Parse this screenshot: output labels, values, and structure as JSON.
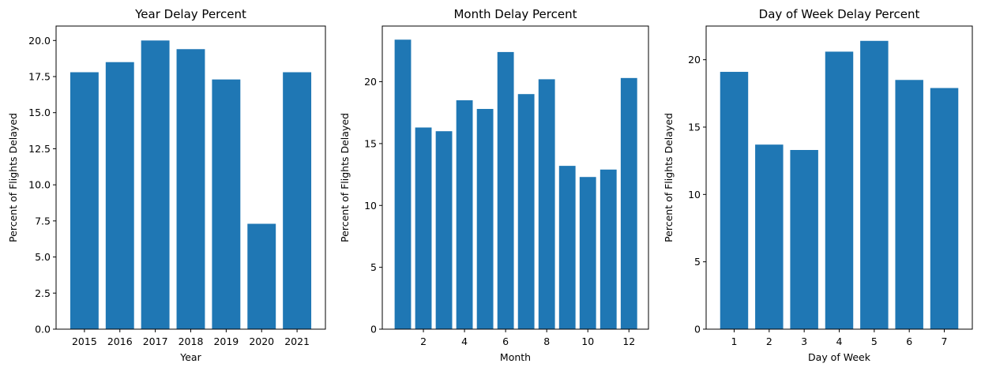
{
  "bar_color": "#1f77b4",
  "chart_data": [
    {
      "type": "bar",
      "title": "Year Delay Percent",
      "xlabel": "Year",
      "ylabel": "Percent of Flights Delayed",
      "categories": [
        "2015",
        "2016",
        "2017",
        "2018",
        "2019",
        "2020",
        "2021"
      ],
      "values": [
        17.8,
        18.5,
        20.0,
        19.4,
        17.3,
        7.3,
        17.8
      ],
      "ylim": [
        0,
        21
      ],
      "yticks": [
        "0.0",
        "2.5",
        "5.0",
        "7.5",
        "10.0",
        "12.5",
        "15.0",
        "17.5",
        "20.0"
      ],
      "xticks": [
        "2015",
        "2016",
        "2017",
        "2018",
        "2019",
        "2020",
        "2021"
      ],
      "grid": false
    },
    {
      "type": "bar",
      "title": "Month Delay Percent",
      "xlabel": "Month",
      "ylabel": "Percent of Flights Delayed",
      "categories": [
        "1",
        "2",
        "3",
        "4",
        "5",
        "6",
        "7",
        "8",
        "9",
        "10",
        "11",
        "12"
      ],
      "values": [
        23.4,
        16.3,
        16.0,
        18.5,
        17.8,
        22.4,
        19.0,
        20.2,
        13.2,
        12.3,
        12.9,
        20.3
      ],
      "ylim": [
        0,
        24.5
      ],
      "yticks": [
        "0",
        "5",
        "10",
        "15",
        "20"
      ],
      "xticks": [
        "2",
        "4",
        "6",
        "8",
        "10",
        "12"
      ],
      "grid": false
    },
    {
      "type": "bar",
      "title": "Day of Week Delay Percent",
      "xlabel": "Day of Week",
      "ylabel": "Percent of Flights Delayed",
      "categories": [
        "1",
        "2",
        "3",
        "4",
        "5",
        "6",
        "7"
      ],
      "values": [
        19.1,
        13.7,
        13.3,
        20.6,
        21.4,
        18.5,
        17.9
      ],
      "ylim": [
        0,
        22.5
      ],
      "yticks": [
        "0",
        "5",
        "10",
        "15",
        "20"
      ],
      "xticks": [
        "1",
        "2",
        "3",
        "4",
        "5",
        "6",
        "7"
      ],
      "grid": false
    }
  ]
}
